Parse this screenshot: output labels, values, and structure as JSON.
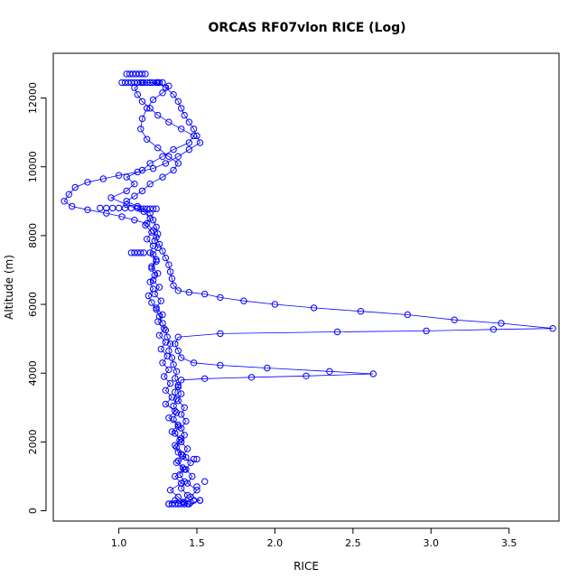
{
  "chart_data": {
    "type": "scatter",
    "title": "ORCAS RF07vlon RICE (Log)",
    "xlabel": "RICE",
    "ylabel": "Altitude (m)",
    "xlim": [
      0.58,
      3.82
    ],
    "ylim": [
      -300,
      13300
    ],
    "x_ticks": [
      1.0,
      1.5,
      2.0,
      2.5,
      3.0,
      3.5
    ],
    "x_tick_labels": [
      "1.0",
      "1.5",
      "2.0",
      "2.5",
      "3.0",
      "3.5"
    ],
    "y_ticks": [
      0,
      2000,
      4000,
      6000,
      8000,
      10000,
      12000
    ],
    "y_tick_labels": [
      "0",
      "2000",
      "4000",
      "6000",
      "8000",
      "10000",
      "12000"
    ],
    "grid": false,
    "series_color": "#0000ff",
    "series": [
      {
        "points": [
          [
            1.32,
            200
          ],
          [
            1.36,
            300
          ],
          [
            1.42,
            250
          ],
          [
            1.38,
            400
          ],
          [
            1.33,
            600
          ],
          [
            1.4,
            800
          ],
          [
            1.36,
            1000
          ],
          [
            1.42,
            1200
          ],
          [
            1.37,
            1400
          ],
          [
            1.43,
            1550
          ],
          [
            1.38,
            1700
          ],
          [
            1.36,
            1900
          ],
          [
            1.4,
            2100
          ],
          [
            1.34,
            2300
          ],
          [
            1.38,
            2500
          ],
          [
            1.32,
            2700
          ],
          [
            1.36,
            2900
          ],
          [
            1.3,
            3100
          ],
          [
            1.34,
            3300
          ],
          [
            1.3,
            3500
          ],
          [
            1.33,
            3700
          ],
          [
            1.29,
            3900
          ],
          [
            1.32,
            4100
          ],
          [
            1.28,
            4300
          ],
          [
            1.31,
            4500
          ],
          [
            1.27,
            4700
          ],
          [
            1.3,
            4900
          ],
          [
            1.26,
            5100
          ],
          [
            1.29,
            5300
          ],
          [
            1.25,
            5500
          ],
          [
            1.28,
            5700
          ],
          [
            1.24,
            5900
          ],
          [
            1.27,
            6100
          ],
          [
            1.23,
            6300
          ],
          [
            1.26,
            6500
          ],
          [
            1.22,
            6700
          ],
          [
            1.25,
            6900
          ],
          [
            1.21,
            7100
          ],
          [
            1.24,
            7300
          ],
          [
            1.2,
            7500
          ],
          [
            1.22,
            7700
          ],
          [
            1.18,
            7900
          ],
          [
            1.21,
            8100
          ],
          [
            1.17,
            8300
          ],
          [
            1.2,
            8500
          ],
          [
            1.16,
            8700
          ],
          [
            1.05,
            8900
          ],
          [
            0.95,
            9100
          ],
          [
            1.05,
            9300
          ],
          [
            1.1,
            9500
          ],
          [
            1.05,
            9700
          ],
          [
            1.15,
            9900
          ],
          [
            1.2,
            10100
          ],
          [
            1.28,
            10300
          ],
          [
            1.35,
            10500
          ],
          [
            1.45,
            10700
          ],
          [
            1.48,
            10900
          ],
          [
            1.4,
            11100
          ],
          [
            1.32,
            11300
          ],
          [
            1.25,
            11500
          ],
          [
            1.2,
            11700
          ],
          [
            1.15,
            11900
          ],
          [
            1.12,
            12100
          ],
          [
            1.1,
            12300
          ],
          [
            1.15,
            12450
          ],
          [
            1.25,
            12450
          ]
        ]
      },
      {
        "points": [
          [
            1.25,
            12450
          ],
          [
            1.3,
            12300
          ],
          [
            1.35,
            12100
          ],
          [
            1.38,
            11900
          ],
          [
            1.4,
            11700
          ],
          [
            1.42,
            11500
          ],
          [
            1.45,
            11300
          ],
          [
            1.48,
            11100
          ],
          [
            1.5,
            10900
          ],
          [
            1.52,
            10700
          ],
          [
            1.45,
            10500
          ],
          [
            1.38,
            10300
          ],
          [
            1.3,
            10100
          ],
          [
            1.22,
            9950
          ],
          [
            1.12,
            9850
          ],
          [
            1.0,
            9750
          ],
          [
            0.9,
            9650
          ],
          [
            0.8,
            9550
          ],
          [
            0.72,
            9400
          ],
          [
            0.68,
            9200
          ],
          [
            0.65,
            9000
          ],
          [
            0.7,
            8850
          ],
          [
            0.8,
            8750
          ],
          [
            0.92,
            8650
          ],
          [
            1.02,
            8550
          ],
          [
            1.1,
            8450
          ],
          [
            1.18,
            8350
          ],
          [
            1.22,
            8150
          ],
          [
            1.24,
            7950
          ],
          [
            1.26,
            7750
          ],
          [
            1.28,
            7550
          ],
          [
            1.3,
            7350
          ],
          [
            1.32,
            7150
          ],
          [
            1.33,
            6950
          ],
          [
            1.34,
            6750
          ],
          [
            1.35,
            6550
          ],
          [
            1.38,
            6400
          ],
          [
            1.45,
            6350
          ],
          [
            1.55,
            6300
          ],
          [
            1.65,
            6200
          ],
          [
            1.8,
            6100
          ],
          [
            2.0,
            6000
          ],
          [
            2.25,
            5900
          ],
          [
            2.55,
            5800
          ],
          [
            2.85,
            5700
          ],
          [
            3.15,
            5550
          ],
          [
            3.45,
            5450
          ],
          [
            3.78,
            5300
          ],
          [
            3.4,
            5270
          ],
          [
            2.97,
            5230
          ],
          [
            2.4,
            5200
          ],
          [
            1.65,
            5150
          ],
          [
            1.38,
            5050
          ],
          [
            1.36,
            4850
          ],
          [
            1.38,
            4650
          ],
          [
            1.4,
            4450
          ],
          [
            1.48,
            4300
          ],
          [
            1.65,
            4230
          ],
          [
            1.95,
            4150
          ],
          [
            2.35,
            4050
          ],
          [
            2.63,
            3980
          ],
          [
            2.2,
            3920
          ],
          [
            1.85,
            3880
          ],
          [
            1.55,
            3840
          ],
          [
            1.4,
            3800
          ],
          [
            1.38,
            3600
          ],
          [
            1.4,
            3400
          ],
          [
            1.38,
            3200
          ],
          [
            1.42,
            3000
          ],
          [
            1.4,
            2800
          ],
          [
            1.43,
            2600
          ],
          [
            1.4,
            2400
          ],
          [
            1.42,
            2200
          ],
          [
            1.4,
            2000
          ],
          [
            1.44,
            1800
          ],
          [
            1.41,
            1600
          ],
          [
            1.46,
            1400
          ],
          [
            1.43,
            1200
          ],
          [
            1.47,
            1000
          ],
          [
            1.44,
            800
          ],
          [
            1.5,
            600
          ],
          [
            1.46,
            400
          ],
          [
            1.52,
            300
          ],
          [
            1.45,
            200
          ]
        ]
      },
      {
        "points": [
          [
            1.2,
            12450
          ],
          [
            1.32,
            12350
          ],
          [
            1.28,
            12150
          ],
          [
            1.22,
            11950
          ],
          [
            1.18,
            11700
          ],
          [
            1.15,
            11400
          ],
          [
            1.14,
            11100
          ],
          [
            1.18,
            10800
          ],
          [
            1.25,
            10550
          ],
          [
            1.32,
            10300
          ],
          [
            1.38,
            10100
          ],
          [
            1.35,
            9900
          ],
          [
            1.28,
            9700
          ],
          [
            1.2,
            9500
          ],
          [
            1.15,
            9300
          ],
          [
            1.1,
            9150
          ],
          [
            1.05,
            9000
          ],
          [
            1.12,
            8850
          ],
          [
            1.2,
            8650
          ],
          [
            1.22,
            8450
          ],
          [
            1.24,
            8250
          ],
          [
            1.25,
            8050
          ],
          [
            1.23,
            7850
          ],
          [
            1.25,
            7650
          ],
          [
            1.22,
            7450
          ],
          [
            1.24,
            7250
          ],
          [
            1.21,
            7050
          ],
          [
            1.23,
            6850
          ],
          [
            1.2,
            6650
          ],
          [
            1.22,
            6450
          ],
          [
            1.19,
            6250
          ],
          [
            1.21,
            6050
          ],
          [
            1.24,
            5850
          ],
          [
            1.26,
            5650
          ],
          [
            1.28,
            5450
          ],
          [
            1.3,
            5250
          ],
          [
            1.31,
            5050
          ],
          [
            1.33,
            4850
          ],
          [
            1.32,
            4650
          ],
          [
            1.34,
            4450
          ],
          [
            1.35,
            4250
          ],
          [
            1.37,
            4050
          ],
          [
            1.36,
            3850
          ],
          [
            1.38,
            3650
          ],
          [
            1.36,
            3450
          ],
          [
            1.37,
            3250
          ],
          [
            1.35,
            3050
          ],
          [
            1.37,
            2850
          ],
          [
            1.35,
            2650
          ],
          [
            1.38,
            2450
          ],
          [
            1.36,
            2250
          ],
          [
            1.39,
            2050
          ],
          [
            1.37,
            1850
          ],
          [
            1.4,
            1650
          ],
          [
            1.38,
            1450
          ],
          [
            1.41,
            1250
          ],
          [
            1.39,
            1050
          ],
          [
            1.42,
            850
          ],
          [
            1.4,
            650
          ],
          [
            1.44,
            450
          ],
          [
            1.41,
            250
          ],
          [
            1.38,
            200
          ]
        ]
      },
      {
        "points": [
          [
            1.05,
            12700
          ],
          [
            1.07,
            12700
          ],
          [
            1.09,
            12700
          ],
          [
            1.11,
            12700
          ],
          [
            1.13,
            12700
          ],
          [
            1.15,
            12700
          ],
          [
            1.17,
            12700
          ],
          [
            1.02,
            12450
          ],
          [
            1.04,
            12450
          ],
          [
            1.06,
            12450
          ],
          [
            1.08,
            12450
          ],
          [
            1.1,
            12450
          ],
          [
            1.12,
            12450
          ],
          [
            1.14,
            12450
          ],
          [
            1.16,
            12450
          ],
          [
            1.18,
            12450
          ],
          [
            1.2,
            12450
          ],
          [
            1.22,
            12450
          ],
          [
            1.24,
            12450
          ],
          [
            1.26,
            12450
          ],
          [
            1.28,
            12450
          ],
          [
            0.88,
            8800
          ],
          [
            0.92,
            8800
          ],
          [
            0.96,
            8800
          ],
          [
            1.0,
            8800
          ],
          [
            1.04,
            8800
          ],
          [
            1.08,
            8800
          ],
          [
            1.12,
            8800
          ],
          [
            1.14,
            8780
          ],
          [
            1.16,
            8780
          ],
          [
            1.18,
            8780
          ],
          [
            1.2,
            8780
          ],
          [
            1.22,
            8780
          ],
          [
            1.24,
            8780
          ],
          [
            1.08,
            7500
          ],
          [
            1.1,
            7500
          ],
          [
            1.12,
            7500
          ],
          [
            1.14,
            7500
          ],
          [
            1.16,
            7500
          ],
          [
            1.32,
            200
          ],
          [
            1.34,
            200
          ],
          [
            1.36,
            200
          ],
          [
            1.38,
            200
          ],
          [
            1.4,
            200
          ],
          [
            1.42,
            200
          ],
          [
            1.44,
            200
          ],
          [
            1.46,
            250
          ],
          [
            1.48,
            300
          ],
          [
            1.52,
            300
          ],
          [
            1.55,
            850
          ],
          [
            1.5,
            700
          ],
          [
            1.48,
            1500
          ],
          [
            1.5,
            1500
          ]
        ]
      }
    ]
  }
}
